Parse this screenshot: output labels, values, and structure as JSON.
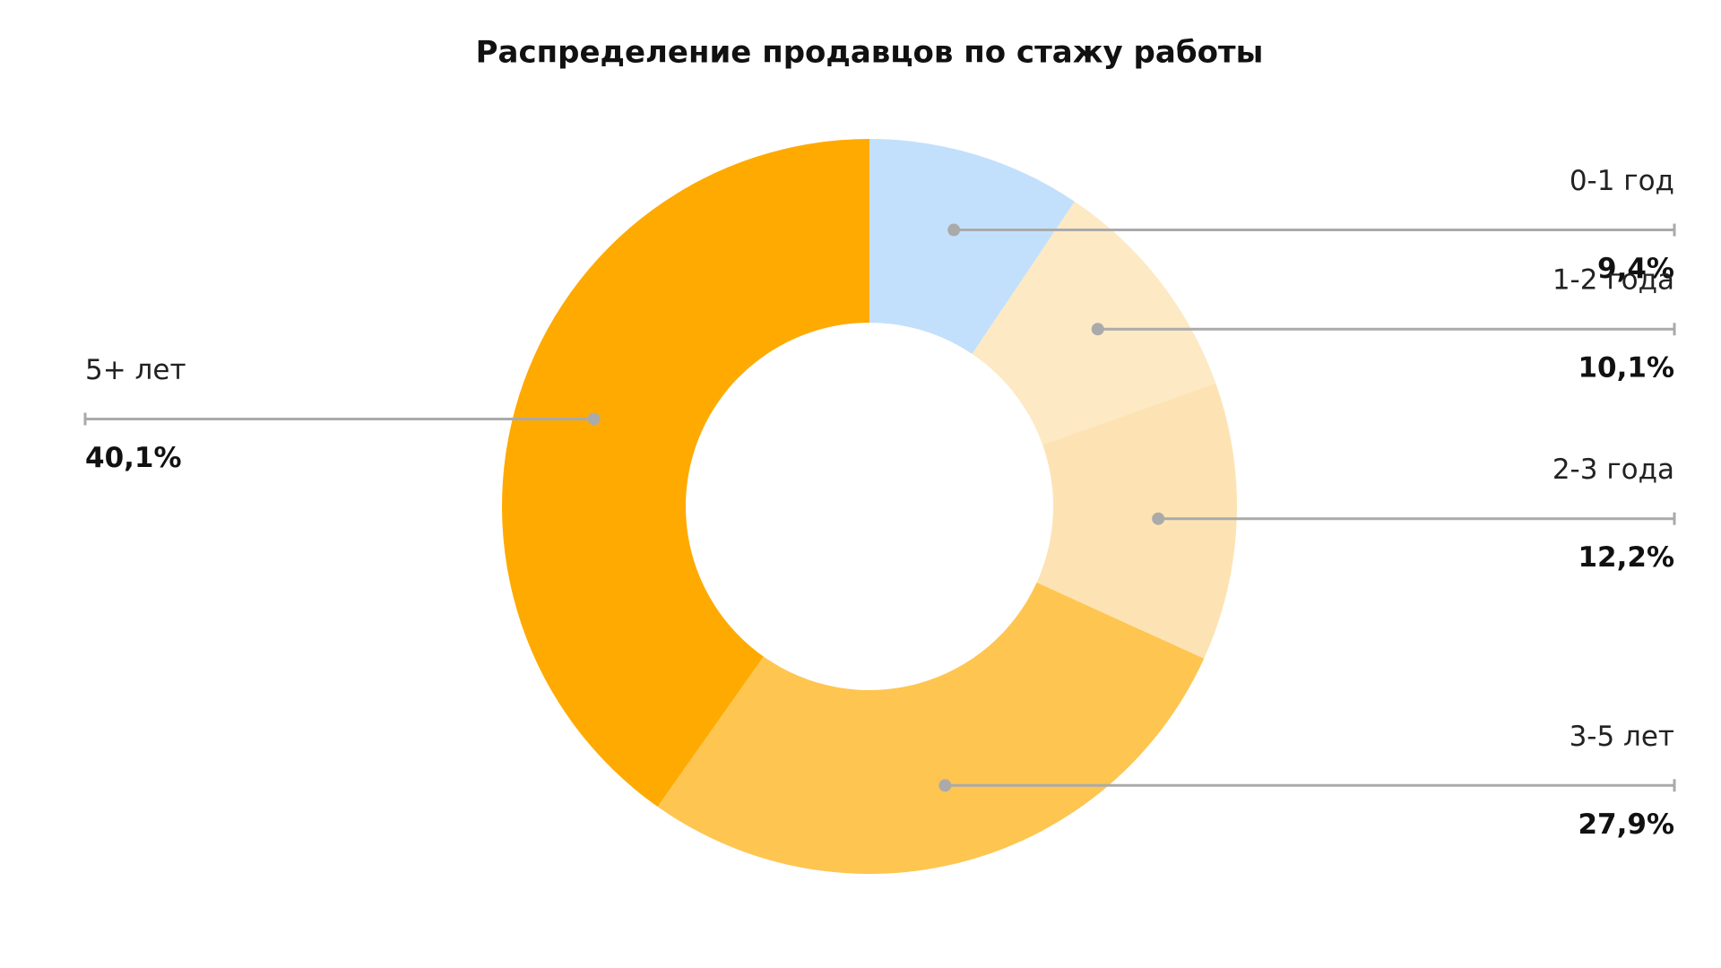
{
  "chart_data": {
    "type": "donut",
    "title": "Распределение продавцов по стажу работы",
    "categories": [
      "0-1 год",
      "1-2 года",
      "2-3 года",
      "3-5 лет",
      "5+ лет"
    ],
    "values": [
      9.4,
      10.1,
      12.2,
      27.9,
      40.1
    ],
    "value_labels": [
      "9,4%",
      "10,1%",
      "12,2%",
      "27,9%",
      "40,1%"
    ],
    "colors": [
      "#c2e0fb",
      "#fde9c4",
      "#fde3b3",
      "#fec551",
      "#ffaa00"
    ]
  }
}
